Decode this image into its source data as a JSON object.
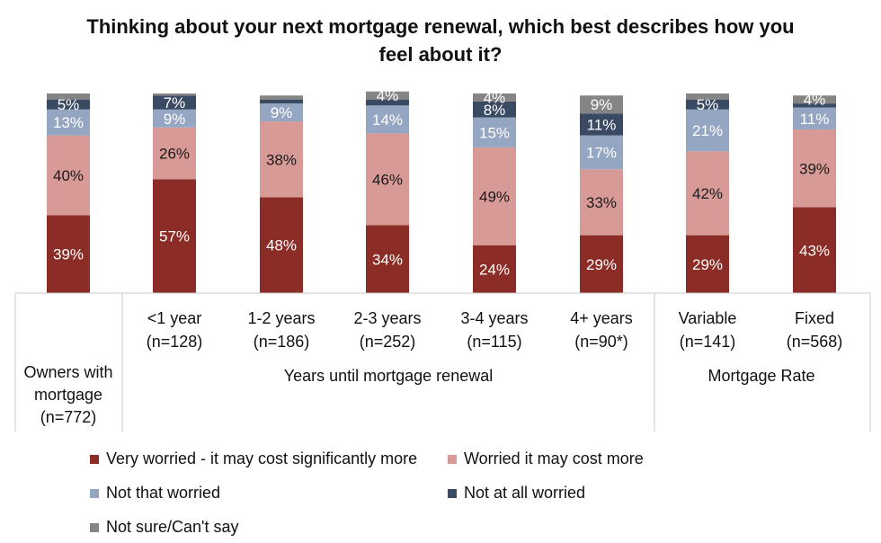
{
  "chart_data": {
    "type": "bar",
    "stacked": true,
    "title": "Thinking about your next mortgage renewal, which best describes how you feel about it?",
    "ylim": [
      0,
      100
    ],
    "grid": false,
    "legend_position": "bottom",
    "categories": [
      {
        "label": "",
        "n": "",
        "group": "Owners with mortgage"
      },
      {
        "label": "<1 year",
        "n": "(n=128)",
        "group": "Years until mortgage renewal"
      },
      {
        "label": "1-2 years",
        "n": "(n=186)",
        "group": "Years until mortgage renewal"
      },
      {
        "label": "2-3 years",
        "n": "(n=252)",
        "group": "Years until mortgage renewal"
      },
      {
        "label": "3-4 years",
        "n": "(n=115)",
        "group": "Years until mortgage renewal"
      },
      {
        "label": "4+ years",
        "n": "(n=90*)",
        "group": "Years until mortgage renewal"
      },
      {
        "label": "Variable",
        "n": "(n=141)",
        "group": "Mortgage Rate"
      },
      {
        "label": "Fixed",
        "n": "(n=568)",
        "group": "Mortgage Rate"
      }
    ],
    "groups": [
      {
        "label_lines": [
          "Owners with",
          "mortgage",
          "(n=772)"
        ]
      },
      {
        "label_lines": [
          "Years until mortgage renewal"
        ]
      },
      {
        "label_lines": [
          "Mortgage Rate"
        ]
      }
    ],
    "series": [
      {
        "name": "Very worried -  it may cost significantly more",
        "color": "#8b2d26",
        "values": [
          39,
          57,
          48,
          34,
          24,
          29,
          29,
          43
        ],
        "labels": [
          "39%",
          "57%",
          "48%",
          "34%",
          "24%",
          "29%",
          "29%",
          "43%"
        ]
      },
      {
        "name": "Worried it may cost more",
        "color": "#d89a96",
        "values": [
          40,
          26,
          38,
          46,
          49,
          33,
          42,
          39
        ],
        "labels": [
          "40%",
          "26%",
          "38%",
          "46%",
          "49%",
          "33%",
          "42%",
          "39%"
        ]
      },
      {
        "name": "Not that worried",
        "color": "#94a6c2",
        "values": [
          13,
          9,
          9,
          14,
          15,
          17,
          21,
          11
        ],
        "labels": [
          "13%",
          "9%",
          "9%",
          "14%",
          "15%",
          "17%",
          "21%",
          "11%"
        ]
      },
      {
        "name": "Not at all worried",
        "color": "#3b4a63",
        "values": [
          5,
          7,
          2,
          3,
          8,
          11,
          5,
          2
        ],
        "labels": [
          "5%",
          "7%",
          "",
          "",
          "8%",
          "11%",
          "5%",
          ""
        ]
      },
      {
        "name": "Not sure/Can't say",
        "color": "#858585",
        "values": [
          3,
          1,
          2,
          4,
          4,
          9,
          3,
          4
        ],
        "labels": [
          "",
          "",
          "",
          "4%",
          "4%",
          "9%",
          "",
          "4%"
        ]
      }
    ]
  }
}
